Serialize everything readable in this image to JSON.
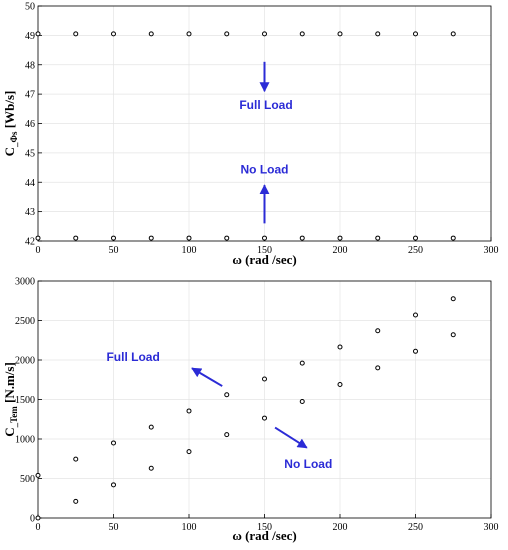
{
  "colors": {
    "annotation": "#2b2bd6",
    "marker_edge": "#000000",
    "grid": "#e4e4e4"
  },
  "chart_data": [
    {
      "id": "top",
      "type": "scatter",
      "xlabel": "ω (rad /sec)",
      "ylabel_main": "C",
      "ylabel_sub": "_Φs",
      "ylabel_unit": " [Wb/s]",
      "xlim": [
        0,
        300
      ],
      "ylim": [
        42,
        50
      ],
      "xticks": [
        0,
        50,
        100,
        150,
        200,
        250,
        300
      ],
      "yticks": [
        42,
        43,
        44,
        45,
        46,
        47,
        48,
        49,
        50
      ],
      "grid": true,
      "series": [
        {
          "x": [
            0,
            25,
            50,
            75,
            100,
            125,
            150,
            175,
            200,
            225,
            250,
            275
          ],
          "y": [
            49.05,
            49.05,
            49.05,
            49.05,
            49.05,
            49.05,
            49.05,
            49.05,
            49.05,
            49.05,
            49.05,
            49.05
          ]
        },
        {
          "x": [
            0,
            25,
            50,
            75,
            100,
            125,
            150,
            175,
            200,
            225,
            250,
            275
          ],
          "y": [
            42.1,
            42.1,
            42.1,
            42.1,
            42.1,
            42.1,
            42.1,
            42.1,
            42.1,
            42.1,
            42.1,
            42.1
          ]
        }
      ],
      "annotations": [
        {
          "text": "Full Load",
          "at": [
            151,
            46.5
          ],
          "arrow_from": [
            150,
            48.1
          ],
          "arrow_to": [
            150,
            47.1
          ]
        },
        {
          "text": "No Load",
          "at": [
            150,
            44.3
          ],
          "arrow_from": [
            150,
            42.6
          ],
          "arrow_to": [
            150,
            43.9
          ]
        }
      ]
    },
    {
      "id": "bottom",
      "type": "scatter",
      "xlabel": "ω (rad /sec)",
      "ylabel_main": "C",
      "ylabel_sub": "_Tem",
      "ylabel_unit": " [N.m/s]",
      "xlim": [
        0,
        300
      ],
      "ylim": [
        0,
        3000
      ],
      "xticks": [
        0,
        50,
        100,
        150,
        200,
        250,
        300
      ],
      "yticks": [
        0,
        500,
        1000,
        1500,
        2000,
        2500,
        3000
      ],
      "grid": true,
      "series": [
        {
          "x": [
            0,
            25,
            50,
            75,
            100,
            125,
            150,
            175,
            200,
            225,
            250,
            275
          ],
          "y": [
            540,
            745,
            950,
            1150,
            1355,
            1560,
            1760,
            1960,
            2165,
            2370,
            2570,
            2775
          ]
        },
        {
          "x": [
            0,
            25,
            50,
            75,
            100,
            125,
            150,
            175,
            200,
            225,
            250,
            275
          ],
          "y": [
            0,
            210,
            420,
            630,
            840,
            1055,
            1265,
            1475,
            1690,
            1900,
            2110,
            2320
          ]
        }
      ],
      "annotations": [
        {
          "text": "Full Load",
          "at": [
            63,
            1990
          ],
          "arrow_from": [
            122,
            1670
          ],
          "arrow_to": [
            102,
            1895
          ]
        },
        {
          "text": "No Load",
          "at": [
            179,
            630
          ],
          "arrow_from": [
            157,
            1145
          ],
          "arrow_to": [
            178,
            890
          ]
        }
      ]
    }
  ]
}
